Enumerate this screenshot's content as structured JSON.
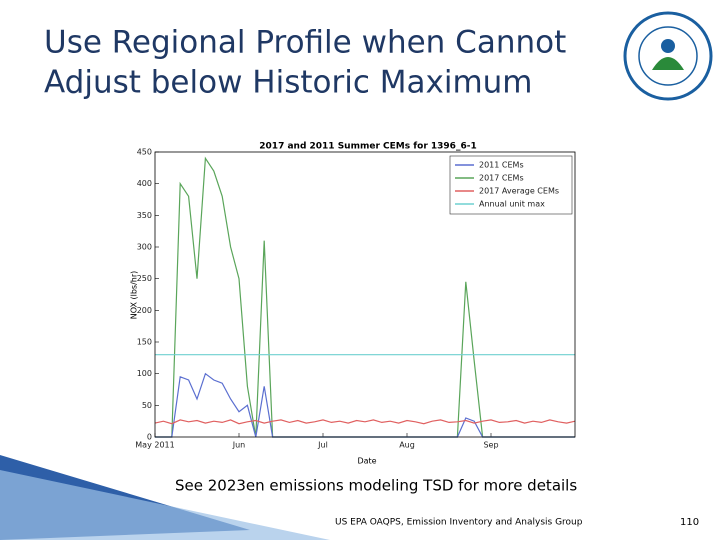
{
  "slide": {
    "title_lines": [
      "Use Regional Profile when Cannot",
      "Adjust below Historic Maximum"
    ],
    "caption": "See 2023en emissions modeling TSD for more details",
    "footer": "US EPA OAQPS, Emission Inventory and Analysis Group",
    "page_number": "110"
  },
  "chart_data": {
    "type": "line",
    "title": "2017 and 2011 Summer CEMs for 1396_6-1",
    "x_label": "Date",
    "y_label": "NOX (lbs/hr)",
    "categories": [
      "May 2011",
      null,
      null,
      null,
      null,
      null,
      null,
      null,
      null,
      null,
      "Jun",
      null,
      null,
      null,
      null,
      null,
      null,
      null,
      null,
      null,
      "Jul",
      null,
      null,
      null,
      null,
      null,
      null,
      null,
      null,
      null,
      "Aug",
      null,
      null,
      null,
      null,
      null,
      null,
      null,
      null,
      null,
      "Sep",
      null,
      null,
      null,
      null,
      null,
      null,
      null,
      null,
      null,
      null
    ],
    "series": [
      {
        "name": "2011 CEMs",
        "color": "#5b6fd0",
        "values": [
          0,
          0,
          0,
          95,
          90,
          60,
          100,
          90,
          85,
          60,
          40,
          50,
          0,
          80,
          0,
          0,
          0,
          0,
          0,
          0,
          0,
          0,
          0,
          0,
          0,
          0,
          0,
          0,
          0,
          0,
          0,
          0,
          0,
          0,
          0,
          0,
          0,
          30,
          25,
          0,
          0,
          0,
          0,
          0,
          0,
          0,
          0,
          0,
          0,
          0,
          0
        ]
      },
      {
        "name": "2017 CEMs",
        "color": "#5aa55a",
        "values": [
          0,
          0,
          0,
          400,
          380,
          250,
          440,
          420,
          380,
          300,
          250,
          80,
          0,
          310,
          0,
          0,
          0,
          0,
          0,
          0,
          0,
          0,
          0,
          0,
          0,
          0,
          0,
          0,
          0,
          0,
          0,
          0,
          0,
          0,
          0,
          0,
          0,
          245,
          120,
          0,
          0,
          0,
          0,
          0,
          0,
          0,
          0,
          0,
          0,
          0,
          0
        ]
      },
      {
        "name": "2017 Average CEMs",
        "color": "#e06060",
        "values": [
          22,
          25,
          21,
          27,
          24,
          26,
          22,
          25,
          23,
          27,
          21,
          24,
          26,
          22,
          25,
          27,
          23,
          26,
          22,
          24,
          27,
          23,
          25,
          22,
          26,
          24,
          27,
          23,
          25,
          22,
          26,
          24,
          21,
          25,
          27,
          23,
          24,
          26,
          22,
          25,
          27,
          23,
          24,
          26,
          22,
          25,
          23,
          27,
          24,
          22,
          25
        ]
      }
    ],
    "reference_lines": [
      {
        "name": "Annual unit max",
        "color": "#6fd0d0",
        "value": 130
      }
    ],
    "ylim": [
      0,
      450
    ],
    "yticks": [
      0,
      50,
      100,
      150,
      200,
      250,
      300,
      350,
      400,
      450
    ],
    "legend": "upper right"
  }
}
